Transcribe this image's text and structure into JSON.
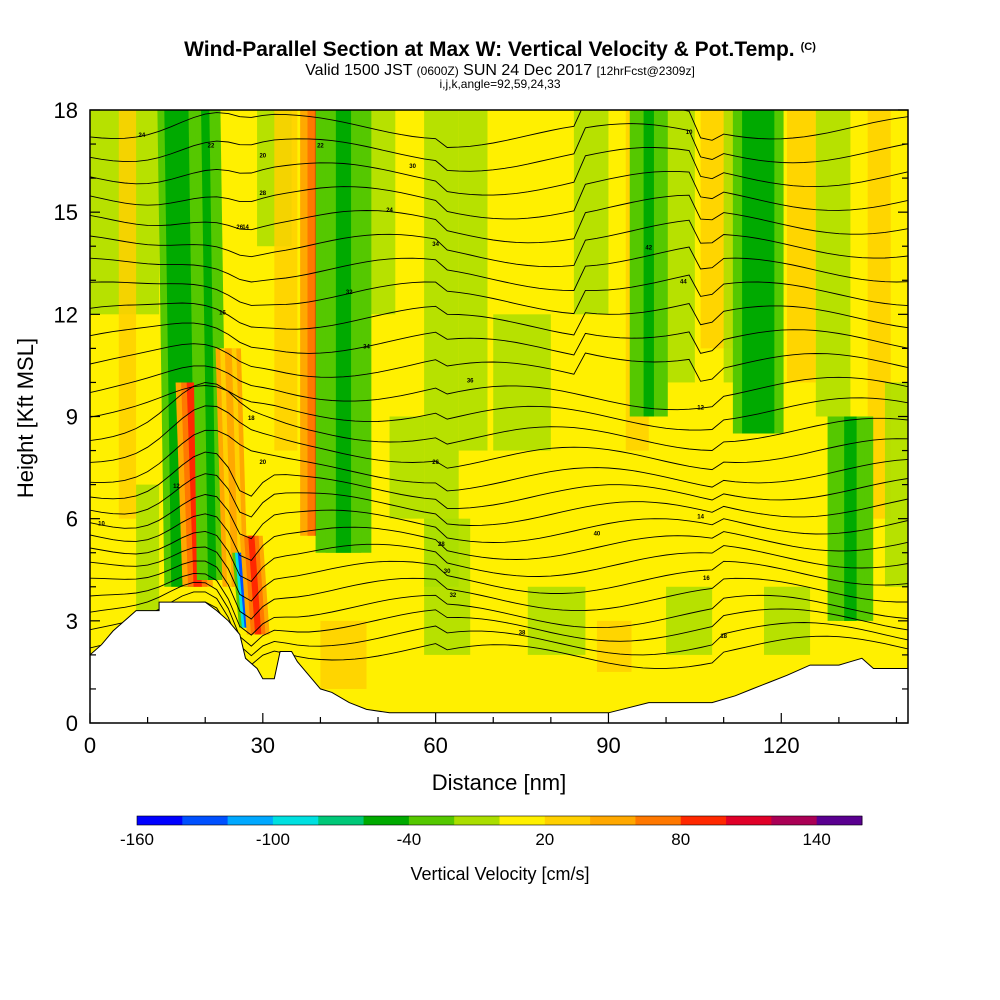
{
  "header": {
    "title": "Wind-Parallel Section at Max W: Vertical Velocity & Pot.Temp.",
    "title_mark": "(C)",
    "valid_prefix": "Valid 1500 JST",
    "valid_utc": "(0600Z)",
    "valid_date": "SUN 24 Dec 2017",
    "forecast": "[12hrFcst@2309z]",
    "indices": "i,j,k,angle=92,59,24,33"
  },
  "chart_data": {
    "type": "heatmap",
    "xlabel": "Distance [nm]",
    "ylabel": "Height [Kft MSL]",
    "xlim": [
      0,
      142
    ],
    "ylim": [
      0,
      18
    ],
    "x_ticks": [
      "0",
      "30",
      "60",
      "90",
      "120"
    ],
    "x_tick_values": [
      0,
      30,
      60,
      90,
      120
    ],
    "y_ticks": [
      "0",
      "3",
      "6",
      "9",
      "12",
      "15",
      "18"
    ],
    "y_tick_values": [
      0,
      3,
      6,
      9,
      12,
      15,
      18
    ],
    "colorbar": {
      "title": "Vertical Velocity [cm/s]",
      "labels": [
        "-160",
        "-100",
        "-40",
        "20",
        "80",
        "140"
      ],
      "label_values": [
        -160,
        -100,
        -40,
        20,
        80,
        140
      ],
      "bins": [
        -160,
        -140,
        -120,
        -100,
        -80,
        -60,
        -40,
        -20,
        0,
        20,
        40,
        60,
        80,
        100,
        120,
        140,
        160
      ],
      "colors": [
        "#0000ff",
        "#0050ff",
        "#00a8ff",
        "#00e0e0",
        "#00c878",
        "#00aa00",
        "#55c800",
        "#aade00",
        "#fff000",
        "#ffd000",
        "#ffa800",
        "#ff7800",
        "#ff2800",
        "#e00028",
        "#aa0055",
        "#5a0090"
      ]
    },
    "terrain": [
      [
        0,
        2.0
      ],
      [
        2,
        2.3
      ],
      [
        4,
        2.7
      ],
      [
        6,
        3.0
      ],
      [
        8,
        3.3
      ],
      [
        12,
        3.3
      ],
      [
        12,
        3.55
      ],
      [
        20,
        3.55
      ],
      [
        22,
        3.3
      ],
      [
        24,
        3.0
      ],
      [
        26,
        2.6
      ],
      [
        27,
        1.9
      ],
      [
        29,
        1.6
      ],
      [
        30,
        1.3
      ],
      [
        32,
        1.3
      ],
      [
        33,
        2.1
      ],
      [
        35,
        2.1
      ],
      [
        36,
        1.8
      ],
      [
        38,
        1.4
      ],
      [
        40,
        1.0
      ],
      [
        42,
        0.9
      ],
      [
        45,
        0.6
      ],
      [
        48,
        0.4
      ],
      [
        52,
        0.3
      ],
      [
        60,
        0.3
      ],
      [
        70,
        0.3
      ],
      [
        80,
        0.3
      ],
      [
        90,
        0.3
      ],
      [
        97,
        0.6
      ],
      [
        103,
        0.6
      ],
      [
        108,
        0.6
      ],
      [
        112,
        0.8
      ],
      [
        115,
        1.0
      ],
      [
        118,
        1.2
      ],
      [
        121,
        1.4
      ],
      [
        125,
        1.7
      ],
      [
        130,
        1.7
      ],
      [
        132,
        1.8
      ],
      [
        134,
        1.9
      ],
      [
        136,
        1.6
      ],
      [
        142,
        1.6
      ]
    ],
    "w_bands": [
      {
        "x": 15,
        "w": -60,
        "ytop": 18,
        "ybot": 4.0,
        "width": 1.5
      },
      {
        "x": 17.5,
        "w": 90,
        "ytop": 10,
        "ybot": 4.0,
        "width": 1.2
      },
      {
        "x": 20,
        "w": -50,
        "ytop": 18,
        "ybot": 4.2,
        "width": 1.2
      },
      {
        "x": 24,
        "w": 50,
        "ytop": 11,
        "ybot": 4.0,
        "width": 1.0
      },
      {
        "x": 26,
        "w": -140,
        "ytop": 5,
        "ybot": 2.8,
        "width": 0.6
      },
      {
        "x": 28,
        "w": 90,
        "ytop": 5.5,
        "ybot": 2.6,
        "width": 0.9
      },
      {
        "x": 40,
        "w": 90,
        "ytop": 18,
        "ybot": 5.5,
        "width": 1.6
      },
      {
        "x": 44,
        "w": -50,
        "ytop": 18,
        "ybot": 5.0,
        "width": 2.2
      },
      {
        "x": 97,
        "w": -50,
        "ytop": 18,
        "ybot": 9,
        "width": 1.5
      },
      {
        "x": 116,
        "w": -60,
        "ytop": 18,
        "ybot": 8.5,
        "width": 2.0
      },
      {
        "x": 132,
        "w": -50,
        "ytop": 9,
        "ybot": 3,
        "width": 1.8
      }
    ],
    "theta_labels": [
      "10",
      "12",
      "14",
      "16",
      "18",
      "20",
      "22",
      "24",
      "26",
      "28",
      "30",
      "32",
      "34",
      "36",
      "38",
      "40",
      "42",
      "44"
    ]
  }
}
